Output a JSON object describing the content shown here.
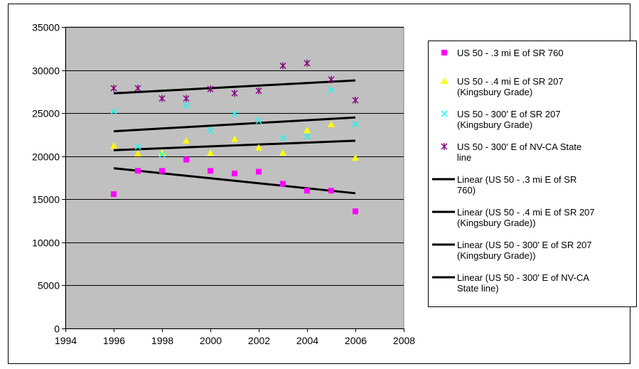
{
  "chart_data": {
    "type": "scatter",
    "title": "",
    "xlabel": "",
    "ylabel": "",
    "xlim": [
      1994,
      2008
    ],
    "ylim": [
      0,
      35000
    ],
    "xticks": [
      1994,
      1996,
      1998,
      2000,
      2002,
      2004,
      2006,
      2008
    ],
    "yticks": [
      0,
      5000,
      10000,
      15000,
      20000,
      25000,
      30000,
      35000
    ],
    "grid": "horizontal",
    "plot_background": "#c0c0c0",
    "legend_position": "right",
    "series": [
      {
        "name": "US 50 - .3 mi E of SR 760",
        "marker": "square",
        "color": "#ff00ff",
        "x": [
          1996,
          1997,
          1998,
          1999,
          2000,
          2001,
          2002,
          2003,
          2004,
          2005,
          2006
        ],
        "y": [
          15600,
          18300,
          18300,
          19600,
          18300,
          18000,
          18200,
          16800,
          16000,
          16000,
          13600
        ]
      },
      {
        "name": "US 50 - .4 mi E of SR 207 (Kingsbury Grade)",
        "marker": "triangle",
        "color": "#ffff00",
        "x": [
          1996,
          1997,
          1998,
          1999,
          2000,
          2001,
          2002,
          2003,
          2004,
          2005,
          2006
        ],
        "y": [
          21200,
          20300,
          20400,
          21800,
          20400,
          22000,
          21000,
          20400,
          23000,
          23700,
          19800
        ]
      },
      {
        "name": "US 50 - 300' E of SR 207 (Kingsbury Grade)",
        "marker": "x",
        "color": "#00ffff",
        "x": [
          1996,
          1997,
          1998,
          1999,
          2000,
          2001,
          2002,
          2003,
          2004,
          2005,
          2006
        ],
        "y": [
          25200,
          21100,
          20200,
          25900,
          23000,
          24900,
          24100,
          22100,
          22300,
          27700,
          23700
        ]
      },
      {
        "name": "US 50 - 300' E of NV-CA State line",
        "marker": "star",
        "color": "#800080",
        "x": [
          1996,
          1997,
          1998,
          1999,
          2000,
          2001,
          2002,
          2003,
          2004,
          2005,
          2006
        ],
        "y": [
          27900,
          27900,
          26700,
          26700,
          27800,
          27300,
          27600,
          30500,
          30800,
          28900,
          26500
        ]
      }
    ],
    "trendlines": [
      {
        "name": "Linear (US 50 - .3 mi E of SR 760)",
        "color": "#000000",
        "x": [
          1996,
          2006
        ],
        "y": [
          18600,
          15700
        ]
      },
      {
        "name": "Linear (US 50 - .4 mi E of SR 207 (Kingsbury Grade))",
        "color": "#000000",
        "x": [
          1996,
          2006
        ],
        "y": [
          20700,
          21800
        ]
      },
      {
        "name": "Linear (US 50 - 300' E of SR 207 (Kingsbury Grade))",
        "color": "#000000",
        "x": [
          1996,
          2006
        ],
        "y": [
          22900,
          24500
        ]
      },
      {
        "name": "Linear (US 50 - 300' E of NV-CA State line)",
        "color": "#000000",
        "x": [
          1996,
          2006
        ],
        "y": [
          27300,
          28800
        ]
      }
    ],
    "legend": [
      {
        "lines": [
          "US 50 - .3 mi E of SR 760"
        ],
        "kind": "marker",
        "series": 0
      },
      {
        "lines": [
          "US 50 - .4 mi E of SR 207",
          "(Kingsbury Grade)"
        ],
        "kind": "marker",
        "series": 1
      },
      {
        "lines": [
          "US 50 - 300' E of SR 207",
          "(Kingsbury Grade)"
        ],
        "kind": "marker",
        "series": 2
      },
      {
        "lines": [
          "US 50 - 300' E of NV-CA State",
          "line"
        ],
        "kind": "marker",
        "series": 3
      },
      {
        "lines": [
          "Linear (US 50 - .3 mi E of SR",
          "760)"
        ],
        "kind": "line",
        "trend": 0
      },
      {
        "lines": [
          "Linear (US 50 - .4 mi E of SR 207",
          "(Kingsbury Grade))"
        ],
        "kind": "line",
        "trend": 1
      },
      {
        "lines": [
          "Linear (US 50 - 300' E of SR 207",
          "(Kingsbury Grade))"
        ],
        "kind": "line",
        "trend": 2
      },
      {
        "lines": [
          "Linear (US 50 - 300' E of NV-CA",
          "State line)"
        ],
        "kind": "line",
        "trend": 3
      }
    ]
  }
}
